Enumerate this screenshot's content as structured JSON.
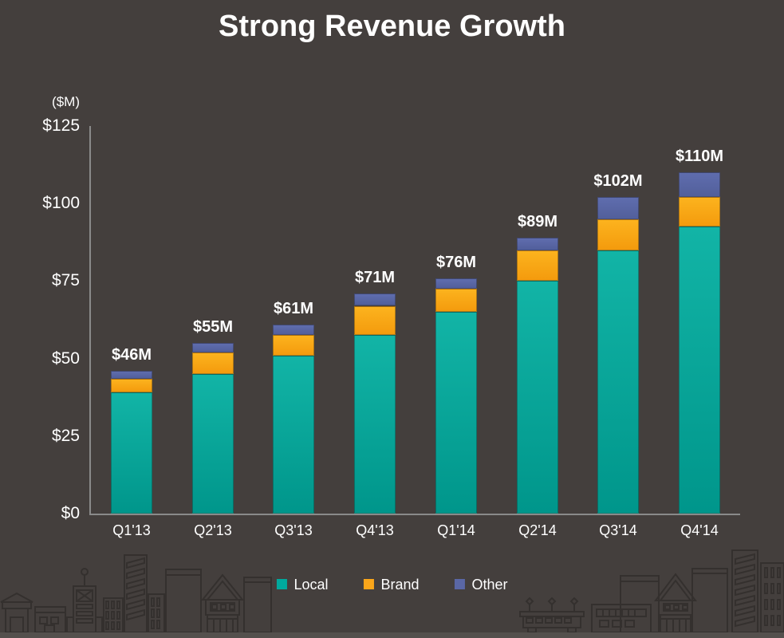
{
  "page": {
    "background_color": "#443F3D",
    "ground_strip_color": "#54504D",
    "axis_color": "#8A8A8A",
    "skyline_stroke_color": "#34302E",
    "text_color": "#FFFFFF"
  },
  "title": "Strong Revenue Growth",
  "chart_data": {
    "type": "bar",
    "stacked": true,
    "title": "Strong Revenue Growth",
    "ylabel": "($M)",
    "ylim": [
      0,
      125
    ],
    "grid": false,
    "legend_position": "bottom",
    "categories": [
      "Q1'13",
      "Q2'13",
      "Q3'13",
      "Q4'13",
      "Q1'14",
      "Q2'14",
      "Q3'14",
      "Q4'14"
    ],
    "series": [
      {
        "name": "Local",
        "color": "#00A99D",
        "color_top": "#12B4A6",
        "color_bottom": "#00968B",
        "values": [
          39,
          45,
          51,
          57.5,
          65,
          75,
          85,
          92.5
        ]
      },
      {
        "name": "Brand",
        "color": "#FAA61A",
        "color_top": "#FCB31E",
        "color_bottom": "#F49B0D",
        "values": [
          4.5,
          7,
          6.5,
          9.5,
          7.5,
          10,
          10,
          9.5
        ]
      },
      {
        "name": "Other",
        "color": "#5A67A5",
        "color_top": "#5F6DAE",
        "color_bottom": "#525F9B",
        "values": [
          2.5,
          3,
          3.5,
          4,
          3.5,
          4,
          7,
          8
        ]
      }
    ],
    "totals": [
      46,
      55,
      61,
      71,
      76,
      89,
      102,
      110
    ],
    "total_labels": [
      "$46M",
      "$55M",
      "$61M",
      "$71M",
      "$76M",
      "$89M",
      "$102M",
      "$110M"
    ],
    "y_ticks": [
      {
        "label": "$125",
        "value": 125
      },
      {
        "label": "$100",
        "value": 100
      },
      {
        "label": "$75",
        "value": 75
      },
      {
        "label": "$50",
        "value": 50
      },
      {
        "label": "$25",
        "value": 25
      },
      {
        "label": "$0",
        "value": 0
      }
    ]
  }
}
